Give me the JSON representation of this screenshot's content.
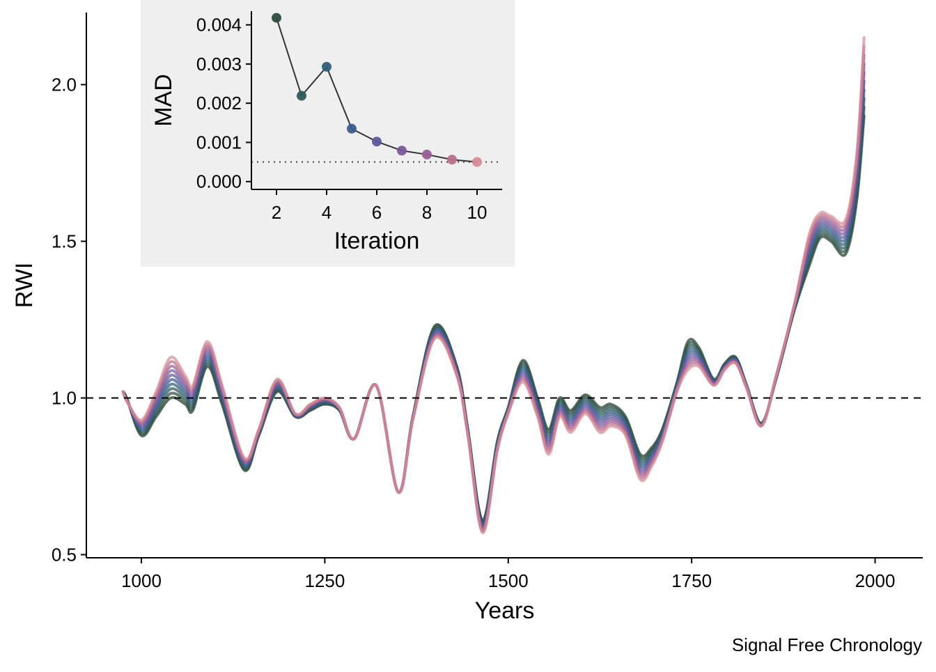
{
  "caption": "Signal Free Chronology",
  "chart_data": [
    {
      "type": "line",
      "xlabel": "Years",
      "ylabel": "RWI",
      "xlim": [
        925,
        2065
      ],
      "ylim": [
        0.49,
        2.23
      ],
      "x_ticks": [
        1000,
        1250,
        1500,
        1750,
        2000
      ],
      "y_ticks": [
        0.5,
        1.0,
        1.5,
        2.0
      ],
      "x_tick_labels": [
        "1000",
        "1250",
        "1500",
        "1750",
        "2000"
      ],
      "y_tick_labels": [
        "0.5",
        "1.0",
        "1.5",
        "2.0"
      ],
      "reference_line": {
        "y": 1.0,
        "style": "dashed"
      },
      "grid": false,
      "legend": "none",
      "iterations": [
        1,
        2,
        3,
        4,
        5,
        6,
        7,
        8,
        9,
        10
      ],
      "colors": [
        "#1f3b2a",
        "#2b4c3d",
        "#2e5a5a",
        "#2f5f77",
        "#3b5b8f",
        "#5a5a9e",
        "#7a5a9c",
        "#9a5e96",
        "#b8708c",
        "#d88a96"
      ],
      "x": [
        975,
        980,
        1000,
        1020,
        1040,
        1060,
        1070,
        1090,
        1110,
        1140,
        1160,
        1185,
        1210,
        1230,
        1250,
        1270,
        1290,
        1320,
        1350,
        1370,
        1400,
        1430,
        1445,
        1465,
        1485,
        1500,
        1520,
        1540,
        1555,
        1570,
        1585,
        1605,
        1625,
        1640,
        1660,
        1680,
        1695,
        1710,
        1730,
        1745,
        1760,
        1780,
        1795,
        1810,
        1825,
        1845,
        1865,
        1890,
        1910,
        1925,
        1940,
        1960,
        1975,
        1985
      ],
      "series_first": [
        1.02,
        1.0,
        0.88,
        0.94,
        1.0,
        0.98,
        0.96,
        1.1,
        0.98,
        0.77,
        0.88,
        1.02,
        0.94,
        0.96,
        0.98,
        0.96,
        0.87,
        1.04,
        0.7,
        0.94,
        1.23,
        1.1,
        0.9,
        0.61,
        0.86,
        0.97,
        1.12,
        1.0,
        0.9,
        1.0,
        0.96,
        1.01,
        0.97,
        0.98,
        0.94,
        0.82,
        0.84,
        0.9,
        1.05,
        1.18,
        1.16,
        1.06,
        1.11,
        1.13,
        1.04,
        0.92,
        1.06,
        1.28,
        1.42,
        1.51,
        1.5,
        1.46,
        1.63,
        1.9
      ],
      "series_last": [
        1.02,
        0.99,
        0.93,
        1.02,
        1.13,
        1.07,
        1.04,
        1.18,
        1.04,
        0.81,
        0.9,
        1.06,
        0.95,
        0.98,
        1.0,
        0.97,
        0.87,
        1.04,
        0.7,
        0.93,
        1.19,
        1.07,
        0.88,
        0.57,
        0.83,
        0.95,
        1.05,
        0.94,
        0.82,
        0.94,
        0.89,
        0.95,
        0.89,
        0.91,
        0.88,
        0.74,
        0.78,
        0.86,
        1.02,
        1.09,
        1.1,
        1.04,
        1.09,
        1.11,
        1.03,
        0.91,
        1.07,
        1.3,
        1.52,
        1.59,
        1.58,
        1.57,
        1.78,
        2.15
      ]
    },
    {
      "type": "scatter",
      "xlabel": "Iteration",
      "ylabel": "MAD",
      "xlim": [
        1,
        11
      ],
      "ylim": [
        -0.0002,
        0.00435
      ],
      "x_ticks": [
        2,
        4,
        6,
        8,
        10
      ],
      "y_ticks": [
        0,
        0.001,
        0.002,
        0.003,
        0.004
      ],
      "x_tick_labels": [
        "2",
        "4",
        "6",
        "8",
        "10"
      ],
      "y_tick_labels": [
        "0.000",
        "0.001",
        "0.002",
        "0.003",
        "0.004"
      ],
      "x": [
        2,
        3,
        4,
        5,
        6,
        7,
        8,
        9,
        10
      ],
      "values": [
        0.00418,
        0.00219,
        0.00293,
        0.00135,
        0.00102,
        0.00079,
        0.00069,
        0.00056,
        0.0005
      ],
      "threshold": {
        "y": 0.0005,
        "style": "dotted"
      },
      "background": "#efefef",
      "grid": false,
      "legend": "none"
    }
  ]
}
